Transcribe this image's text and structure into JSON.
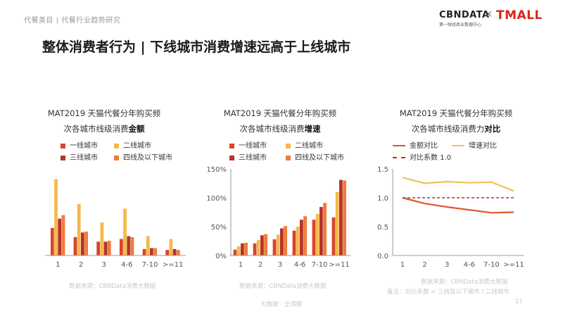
{
  "breadcrumb": "代餐类目 | 代餐行业趋势研究",
  "logo": {
    "brand": "CBNDATA",
    "sub": "第一财经商业数据中心",
    "separator": "×",
    "partner": "TMALL"
  },
  "page_title": "整体消费者行为 | 下线城市消费增速远高于上线城市",
  "colors": {
    "tier1": "#d9452b",
    "tier2": "#f5b94a",
    "tier3": "#b5332a",
    "tier4": "#ed7d3a",
    "amount_line": "#e0552f",
    "growth_line": "#f3c05a",
    "baseline": "#b5332a"
  },
  "chart_data": [
    {
      "type": "bar",
      "title_line1": "MAT2019 天猫代餐分年购买频",
      "title_line2_prefix": "次各城市线级消费",
      "title_line2_bold": "金额",
      "categories": [
        "1",
        "2",
        "3",
        "4-6",
        "7-10",
        ">=11"
      ],
      "series": [
        {
          "name": "一线城市",
          "values": [
            0.3,
            0.2,
            0.15,
            0.18,
            0.07,
            0.06
          ]
        },
        {
          "name": "二线城市",
          "values": [
            0.83,
            0.56,
            0.36,
            0.51,
            0.21,
            0.18
          ]
        },
        {
          "name": "三线城市",
          "values": [
            0.4,
            0.25,
            0.15,
            0.21,
            0.08,
            0.07
          ]
        },
        {
          "name": "四线及以下城市",
          "values": [
            0.44,
            0.26,
            0.16,
            0.2,
            0.08,
            0.06
          ]
        }
      ],
      "show_y_axis": false,
      "source": "数据来源：CBNData消费大数据"
    },
    {
      "type": "bar",
      "title_line1": "MAT2019 天猫代餐分年购买频",
      "title_line2_prefix": "次各城市线级消费",
      "title_line2_bold": "增速",
      "categories": [
        "1",
        "2",
        "3",
        "4-6",
        "7-10",
        ">=11"
      ],
      "series": [
        {
          "name": "一线城市",
          "values": [
            10,
            21,
            28,
            43,
            62,
            66
          ]
        },
        {
          "name": "二线城市",
          "values": [
            16,
            27,
            36,
            50,
            72,
            110
          ]
        },
        {
          "name": "三线城市",
          "values": [
            21,
            35,
            47,
            62,
            84,
            131
          ]
        },
        {
          "name": "四线及以下城市",
          "values": [
            22,
            37,
            51,
            68,
            91,
            130
          ]
        }
      ],
      "yticks": [
        "0%",
        "50%",
        "100%",
        "150%"
      ],
      "ylim": [
        0,
        150
      ],
      "source": "数据来源：CBNData消费大数据"
    },
    {
      "type": "line",
      "title_line1": "MAT2019 天猫代餐分年购买频",
      "title_line2_prefix": "次各城市线级消费力",
      "title_line2_bold": "对比",
      "categories": [
        "1",
        "2",
        "3",
        "4-6",
        "7-10",
        ">=11"
      ],
      "series": [
        {
          "name": "金额对比",
          "values": [
            1.0,
            0.9,
            0.84,
            0.79,
            0.74,
            0.75
          ]
        },
        {
          "name": "增速对比",
          "values": [
            1.35,
            1.25,
            1.28,
            1.26,
            1.27,
            1.12
          ]
        },
        {
          "name": "对比系数 1.0",
          "values": [
            1.0,
            1.0,
            1.0,
            1.0,
            1.0,
            1.0
          ]
        }
      ],
      "yticks": [
        "0.0",
        "0.5",
        "1.0",
        "1.5"
      ],
      "ylim": [
        0,
        1.5
      ],
      "source": "数据来源：CBNData消费大数据",
      "note": "备注：对比系数 = 三线及以下城市 / 二线城市"
    }
  ],
  "footer": "大数据 · 全洞察",
  "page_number": "17"
}
